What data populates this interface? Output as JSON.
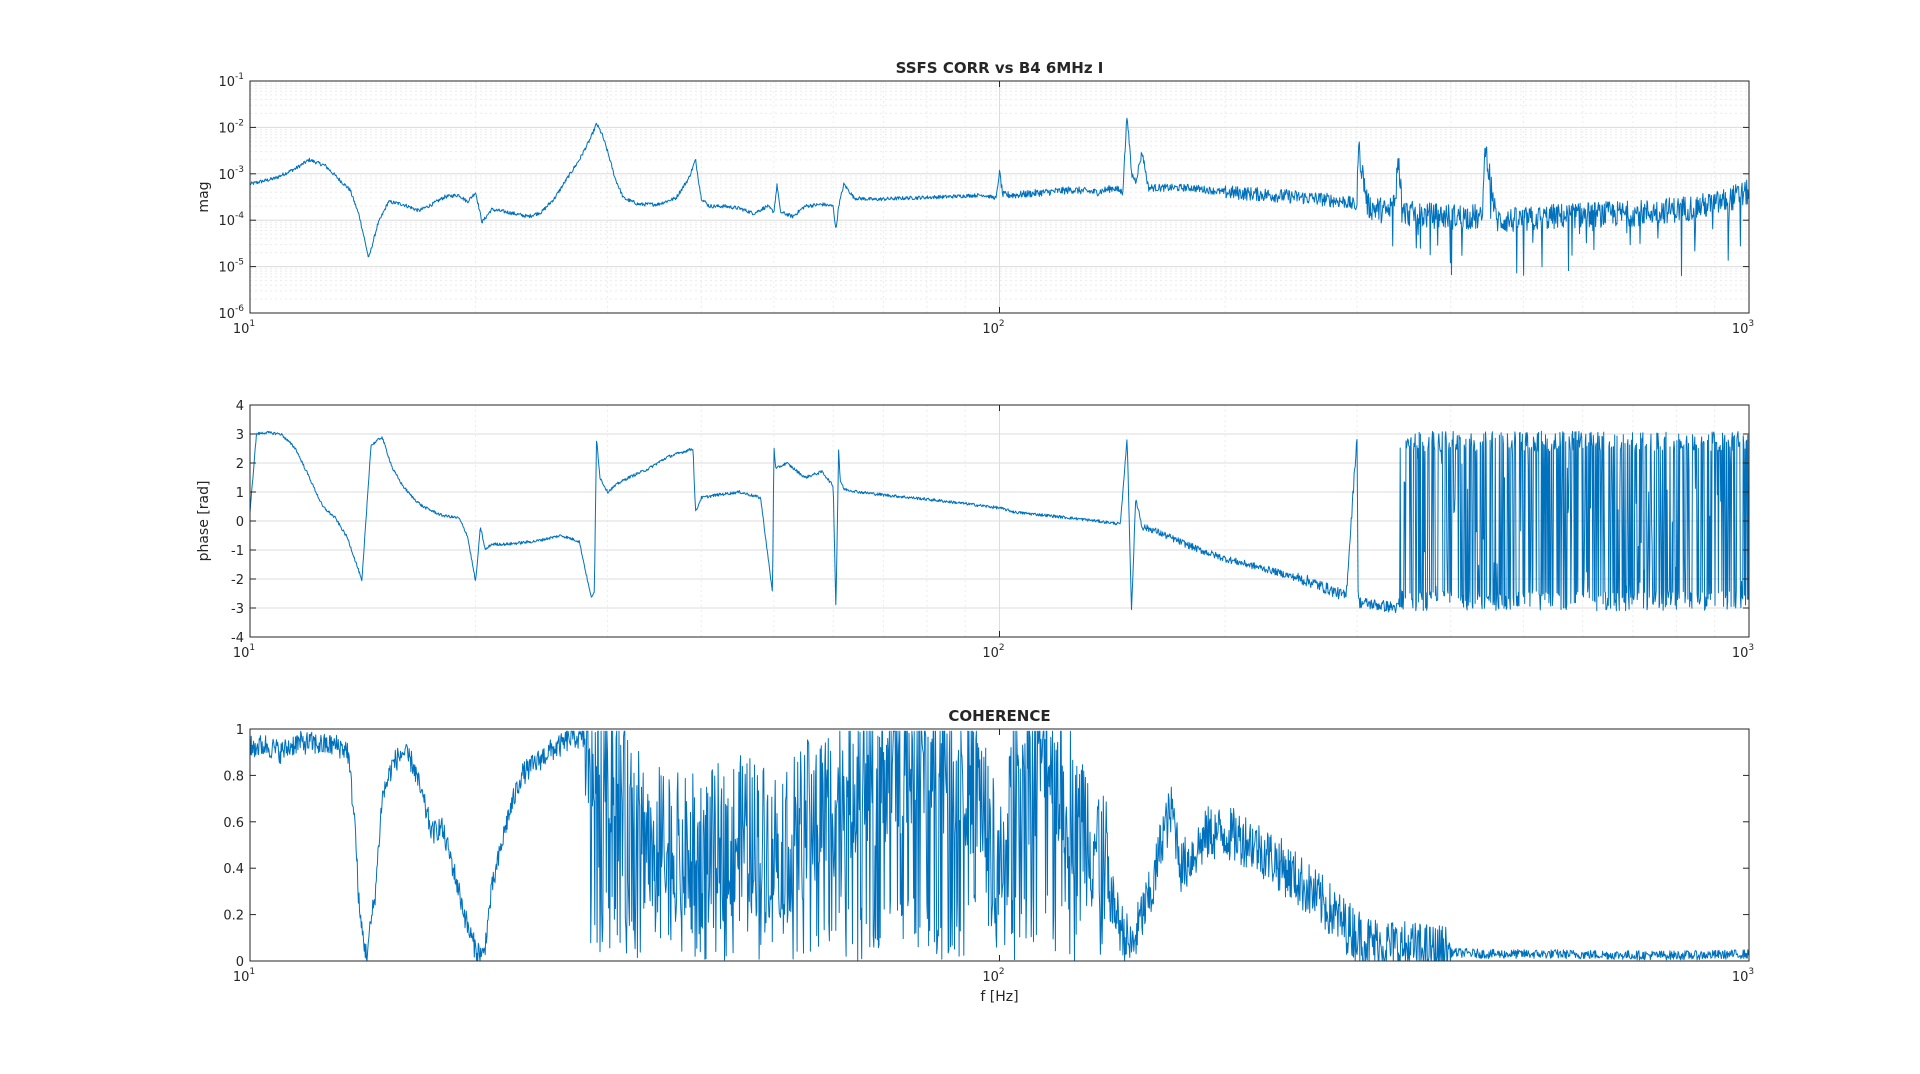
{
  "chart_data": [
    {
      "type": "line",
      "id": "mag",
      "title": "SSFS CORR vs B4 6MHz I",
      "xlabel": "",
      "ylabel": "mag",
      "xscale": "log",
      "yscale": "log",
      "xlim": [
        10,
        1000
      ],
      "ylim": [
        1e-06,
        0.1
      ],
      "grid": true,
      "x_ticks": [
        {
          "base": "10",
          "exp": "1"
        },
        {
          "base": "10",
          "exp": "2"
        },
        {
          "base": "10",
          "exp": "3"
        }
      ],
      "y_ticks": [
        {
          "base": "10",
          "exp": "-6"
        },
        {
          "base": "10",
          "exp": "-5"
        },
        {
          "base": "10",
          "exp": "-4"
        },
        {
          "base": "10",
          "exp": "-3"
        },
        {
          "base": "10",
          "exp": "-2"
        },
        {
          "base": "10",
          "exp": "-1"
        }
      ],
      "color": "#0072BD",
      "series": [
        {
          "x": [
            10,
            10.8,
            11.5,
            12,
            12.6,
            13.1,
            13.6,
            14,
            14.4,
            14.8,
            15.3,
            16,
            16.8,
            17.5,
            18.2,
            19,
            19.5,
            20,
            20.4,
            21,
            22,
            23.5,
            24.5,
            25.5,
            26.5,
            27.5,
            28.5,
            29,
            29.5,
            30,
            30.7,
            31.5,
            33,
            35,
            37,
            38.5,
            39.3,
            40,
            41,
            43,
            45,
            47,
            49,
            50,
            50.5,
            51,
            53,
            55,
            58,
            60,
            60.5,
            61,
            62,
            64,
            68,
            75,
            85,
            95,
            99,
            100,
            101,
            105,
            115,
            125,
            135,
            142,
            146,
            148,
            150,
            152,
            155,
            158,
            165,
            180,
            200,
            230,
            260,
            290,
            300,
            301,
            310,
            330,
            338,
            340,
            345,
            360,
            400,
            430,
            440,
            445,
            460,
            500,
            550,
            600,
            700,
            800,
            900,
            950,
            1000
          ],
          "values": [
            0.0006,
            0.0008,
            0.0013,
            0.002,
            0.0015,
            0.0008,
            0.00045,
            0.00012,
            1.5e-05,
            8e-05,
            0.00025,
            0.00022,
            0.00016,
            0.00022,
            0.00032,
            0.00035,
            0.00025,
            0.0004,
            9e-05,
            0.00017,
            0.00015,
            0.00012,
            0.00015,
            0.0003,
            0.0008,
            0.002,
            0.006,
            0.012,
            0.007,
            0.003,
            0.0008,
            0.0003,
            0.00022,
            0.00022,
            0.0003,
            0.0008,
            0.002,
            0.0003,
            0.0002,
            0.0002,
            0.00018,
            0.00014,
            0.0002,
            0.00015,
            0.0006,
            0.00015,
            0.00012,
            0.0002,
            0.00022,
            0.0002,
            6e-05,
            0.0002,
            0.0006,
            0.0003,
            0.00028,
            0.0003,
            0.00032,
            0.00035,
            0.0003,
            0.0011,
            0.00035,
            0.00035,
            0.0004,
            0.00045,
            0.0004,
            0.0005,
            0.0004,
            0.02,
            0.001,
            0.0007,
            0.003,
            0.0005,
            0.0005,
            0.0005,
            0.0004,
            0.00035,
            0.0003,
            0.00025,
            0.0002,
            0.004,
            0.0002,
            0.00015,
            0.0003,
            0.003,
            0.00015,
            0.00013,
            0.00012,
            0.00012,
            0.0001,
            0.004,
            0.0001,
            0.0001,
            0.00012,
            0.00013,
            0.00014,
            0.00017,
            0.00022,
            0.0003,
            0.0004
          ]
        }
      ]
    },
    {
      "type": "line",
      "id": "phase",
      "title": "",
      "xlabel": "",
      "ylabel": "phase [rad]",
      "xscale": "log",
      "yscale": "linear",
      "xlim": [
        10,
        1000
      ],
      "ylim": [
        -4,
        4
      ],
      "grid": true,
      "x_ticks": [
        {
          "base": "10",
          "exp": "1"
        },
        {
          "base": "10",
          "exp": "2"
        },
        {
          "base": "10",
          "exp": "3"
        }
      ],
      "y_ticks": [
        {
          "base": "-4",
          "exp": ""
        },
        {
          "base": "-3",
          "exp": ""
        },
        {
          "base": "-2",
          "exp": ""
        },
        {
          "base": "-1",
          "exp": ""
        },
        {
          "base": "0",
          "exp": ""
        },
        {
          "base": "1",
          "exp": ""
        },
        {
          "base": "2",
          "exp": ""
        },
        {
          "base": "3",
          "exp": ""
        },
        {
          "base": "4",
          "exp": ""
        }
      ],
      "color": "#0072BD",
      "series": [
        {
          "x": [
            10,
            10.2,
            10.5,
            11,
            11.5,
            12,
            12.5,
            13,
            13.5,
            14,
            14.1,
            14.5,
            15,
            15.5,
            16,
            16.5,
            17,
            18,
            19,
            19.5,
            20,
            20.3,
            20.6,
            21,
            22,
            24,
            26,
            27.5,
            28.5,
            28.8,
            29,
            29.3,
            30,
            31,
            32,
            34,
            36,
            38,
            39,
            39.3,
            40,
            42,
            45,
            48,
            49.8,
            50,
            50.3,
            52,
            55,
            58,
            60,
            60.5,
            61,
            61.3,
            62,
            65,
            70,
            80,
            90,
            100,
            105,
            115,
            130,
            145,
            148,
            150,
            152,
            155,
            160,
            170,
            185,
            200,
            230,
            260,
            290,
            300,
            301,
            320,
            340
          ],
          "values": [
            0.3,
            3.0,
            3.05,
            3.0,
            2.5,
            1.5,
            0.5,
            0.1,
            -0.6,
            -1.8,
            -2.1,
            2.6,
            2.9,
            1.8,
            1.2,
            0.8,
            0.5,
            0.2,
            0.1,
            -0.5,
            -2.1,
            -0.2,
            -1.0,
            -0.8,
            -0.8,
            -0.7,
            -0.5,
            -0.7,
            -2.6,
            -2.5,
            2.9,
            1.5,
            1.0,
            1.3,
            1.5,
            1.8,
            2.2,
            2.4,
            2.5,
            0.3,
            0.8,
            0.9,
            1.0,
            0.8,
            -2.5,
            2.6,
            1.8,
            2.0,
            1.5,
            1.7,
            1.2,
            -3.1,
            2.5,
            1.4,
            1.1,
            1.0,
            0.9,
            0.75,
            0.6,
            0.45,
            0.3,
            0.2,
            0.05,
            -0.1,
            2.9,
            -3.1,
            0.8,
            -0.2,
            -0.3,
            -0.6,
            -1.0,
            -1.3,
            -1.7,
            -2.1,
            -2.6,
            3.0,
            -2.8,
            -2.9,
            -3.0
          ]
        }
      ],
      "note_wrapping_region_hz": [
        340,
        1000
      ]
    },
    {
      "type": "line",
      "id": "coherence",
      "title": "COHERENCE",
      "xlabel": "f [Hz]",
      "ylabel": "",
      "xscale": "log",
      "yscale": "linear",
      "xlim": [
        10,
        1000
      ],
      "ylim": [
        0,
        1
      ],
      "grid": false,
      "x_ticks": [
        {
          "base": "10",
          "exp": "1"
        },
        {
          "base": "10",
          "exp": "2"
        },
        {
          "base": "10",
          "exp": "3"
        }
      ],
      "y_ticks": [
        {
          "base": "0",
          "exp": ""
        },
        {
          "base": "0.2",
          "exp": ""
        },
        {
          "base": "0.4",
          "exp": ""
        },
        {
          "base": "0.6",
          "exp": ""
        },
        {
          "base": "0.8",
          "exp": ""
        },
        {
          "base": "1",
          "exp": ""
        }
      ],
      "color": "#0072BD",
      "series": [
        {
          "x": [
            10,
            10.5,
            11,
            11.5,
            12,
            12.5,
            13,
            13.5,
            13.8,
            14,
            14.3,
            14.7,
            15,
            15.5,
            16,
            16.5,
            17,
            17.5,
            18,
            18.5,
            19,
            19.5,
            20,
            20.5,
            21,
            22,
            23,
            24,
            25,
            26,
            27,
            28,
            29,
            30,
            32,
            35,
            38,
            42,
            46,
            50,
            55,
            60,
            65,
            70,
            75,
            80,
            85,
            90,
            95,
            100,
            105,
            110,
            115,
            120,
            125,
            130,
            135,
            140,
            145,
            150,
            155,
            160,
            165,
            170,
            175,
            180,
            185,
            190,
            200,
            215,
            230,
            250,
            270,
            290,
            310,
            340,
            380,
            450,
            550,
            700,
            850,
            1000
          ],
          "values": [
            0.92,
            0.93,
            0.9,
            0.94,
            0.94,
            0.93,
            0.93,
            0.91,
            0.6,
            0.2,
            0.02,
            0.3,
            0.7,
            0.85,
            0.9,
            0.85,
            0.7,
            0.55,
            0.58,
            0.45,
            0.3,
            0.15,
            0.05,
            0.02,
            0.3,
            0.6,
            0.8,
            0.85,
            0.9,
            0.93,
            0.97,
            0.95,
            0.7,
            0.96,
            0.6,
            0.5,
            0.45,
            0.5,
            0.55,
            0.5,
            0.6,
            0.7,
            0.8,
            0.85,
            0.9,
            0.88,
            0.9,
            0.85,
            0.7,
            0.3,
            0.8,
            0.85,
            0.9,
            0.8,
            0.7,
            0.6,
            0.5,
            0.3,
            0.15,
            0.05,
            0.2,
            0.3,
            0.55,
            0.65,
            0.4,
            0.45,
            0.5,
            0.55,
            0.55,
            0.52,
            0.45,
            0.35,
            0.25,
            0.15,
            0.08,
            0.06,
            0.04,
            0.03,
            0.03,
            0.025,
            0.025,
            0.03
          ]
        }
      ]
    }
  ]
}
